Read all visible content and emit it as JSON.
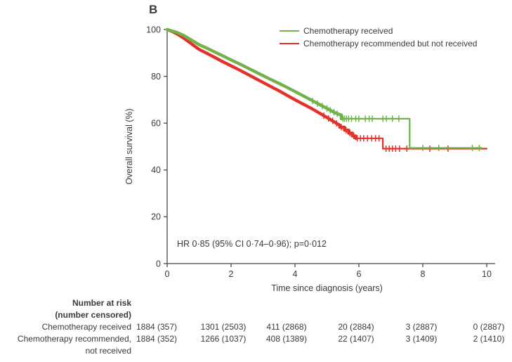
{
  "panel_label": "B",
  "chart_data": {
    "type": "line",
    "subtype": "kaplan-meier-step",
    "title": "B",
    "xlabel": "Time since diagnosis (years)",
    "ylabel": "Overall survival (%)",
    "xlim": [
      0,
      10
    ],
    "ylim": [
      0,
      100
    ],
    "xticks": [
      0,
      2,
      4,
      6,
      8,
      10
    ],
    "yticks": [
      0,
      20,
      40,
      60,
      80,
      100
    ],
    "grid": false,
    "legend_position": "top-right-inside",
    "annotation": "HR 0·85 (95% CI 0·74–0·96); p=0·012",
    "series": [
      {
        "name": "Chemotherapy received",
        "color": "#72b24a",
        "thick_until": 5.45,
        "points": [
          [
            0,
            100
          ],
          [
            0.15,
            99.4
          ],
          [
            0.3,
            98.8
          ],
          [
            0.5,
            97.6
          ],
          [
            0.75,
            95.6
          ],
          [
            1,
            93.5
          ],
          [
            1.25,
            92
          ],
          [
            1.5,
            90.3
          ],
          [
            1.75,
            88.7
          ],
          [
            2,
            87
          ],
          [
            2.25,
            85.4
          ],
          [
            2.5,
            83.7
          ],
          [
            2.75,
            82
          ],
          [
            3,
            80.3
          ],
          [
            3.25,
            78.6
          ],
          [
            3.5,
            77
          ],
          [
            3.75,
            75.3
          ],
          [
            4,
            73.5
          ],
          [
            4.25,
            71.7
          ],
          [
            4.5,
            69.9
          ],
          [
            4.75,
            68.1
          ],
          [
            5,
            66.3
          ],
          [
            5.2,
            64.8
          ],
          [
            5.35,
            63.9
          ],
          [
            5.45,
            63.5
          ],
          [
            5.45,
            61.9
          ],
          [
            7.59,
            61.9
          ],
          [
            7.59,
            49.4
          ],
          [
            9.85,
            49.4
          ]
        ],
        "censors": [
          [
            4.55,
            69.5
          ],
          [
            4.7,
            68.4
          ],
          [
            4.85,
            67.3
          ],
          [
            5.0,
            66.3
          ],
          [
            5.1,
            65.5
          ],
          [
            5.22,
            64.7
          ],
          [
            5.32,
            64.0
          ],
          [
            5.5,
            61.9
          ],
          [
            5.55,
            61.9
          ],
          [
            5.61,
            61.9
          ],
          [
            5.68,
            61.9
          ],
          [
            5.77,
            61.9
          ],
          [
            5.9,
            61.9
          ],
          [
            6.0,
            61.9
          ],
          [
            6.2,
            61.9
          ],
          [
            6.32,
            61.9
          ],
          [
            6.42,
            61.9
          ],
          [
            6.75,
            61.9
          ],
          [
            6.86,
            61.9
          ],
          [
            7.05,
            61.9
          ],
          [
            7.25,
            61.9
          ],
          [
            8.0,
            49.4
          ],
          [
            8.5,
            49.4
          ],
          [
            9.55,
            49.4
          ],
          [
            9.77,
            49.4
          ]
        ]
      },
      {
        "name": "Chemotherapy recommended but not received",
        "color": "#e4312b",
        "thick_until": 5.9,
        "points": [
          [
            0,
            100
          ],
          [
            0.15,
            99.2
          ],
          [
            0.3,
            98.2
          ],
          [
            0.5,
            96.5
          ],
          [
            0.75,
            94
          ],
          [
            1,
            91.5
          ],
          [
            1.25,
            89.8
          ],
          [
            1.5,
            88
          ],
          [
            1.75,
            86.2
          ],
          [
            2,
            84.5
          ],
          [
            2.25,
            82.8
          ],
          [
            2.5,
            81
          ],
          [
            2.75,
            79.2
          ],
          [
            3,
            77.4
          ],
          [
            3.25,
            75.6
          ],
          [
            3.5,
            73.8
          ],
          [
            3.75,
            71.9
          ],
          [
            4,
            70
          ],
          [
            4.25,
            68.2
          ],
          [
            4.5,
            66.4
          ],
          [
            4.75,
            64.4
          ],
          [
            5,
            62.4
          ],
          [
            5.15,
            61.2
          ],
          [
            5.3,
            59.9
          ],
          [
            5.4,
            59.2
          ],
          [
            5.4,
            58.3
          ],
          [
            5.55,
            58.3
          ],
          [
            5.55,
            57
          ],
          [
            5.68,
            57
          ],
          [
            5.68,
            55.7
          ],
          [
            5.8,
            55.7
          ],
          [
            5.8,
            54.5
          ],
          [
            5.9,
            54.5
          ],
          [
            5.9,
            53.5
          ],
          [
            6.75,
            53.5
          ],
          [
            6.75,
            49.1
          ],
          [
            10,
            49.1
          ]
        ],
        "censors": [
          [
            4.9,
            63.2
          ],
          [
            5.05,
            62.0
          ],
          [
            5.18,
            61.0
          ],
          [
            5.3,
            59.9
          ],
          [
            5.45,
            58.3
          ],
          [
            5.6,
            57.0
          ],
          [
            5.72,
            55.7
          ],
          [
            5.84,
            54.5
          ],
          [
            5.95,
            53.5
          ],
          [
            6.05,
            53.5
          ],
          [
            6.15,
            53.5
          ],
          [
            6.27,
            53.5
          ],
          [
            6.4,
            53.5
          ],
          [
            6.52,
            53.5
          ],
          [
            6.63,
            53.5
          ],
          [
            6.85,
            49.1
          ],
          [
            6.95,
            49.1
          ],
          [
            7.05,
            49.1
          ],
          [
            7.15,
            49.1
          ],
          [
            7.27,
            49.1
          ],
          [
            7.5,
            49.1
          ],
          [
            8.22,
            49.1
          ],
          [
            8.79,
            49.1
          ]
        ]
      }
    ]
  },
  "risk_table": {
    "header_line1": "Number at risk",
    "header_line2": "(number censored)",
    "rows": [
      {
        "label": "Chemotherapy received",
        "label2": "",
        "values": [
          "1884 (357)",
          "1301 (2503)",
          "411 (2868)",
          "20 (2884)",
          "3 (2887)",
          "0 (2887)"
        ]
      },
      {
        "label": "Chemotherapy recommended,",
        "label2": "not received",
        "values": [
          "1884 (352)",
          "1266 (1037)",
          "408 (1389)",
          "22 (1407)",
          "3 (1409)",
          "2 (1410)"
        ]
      }
    ]
  }
}
